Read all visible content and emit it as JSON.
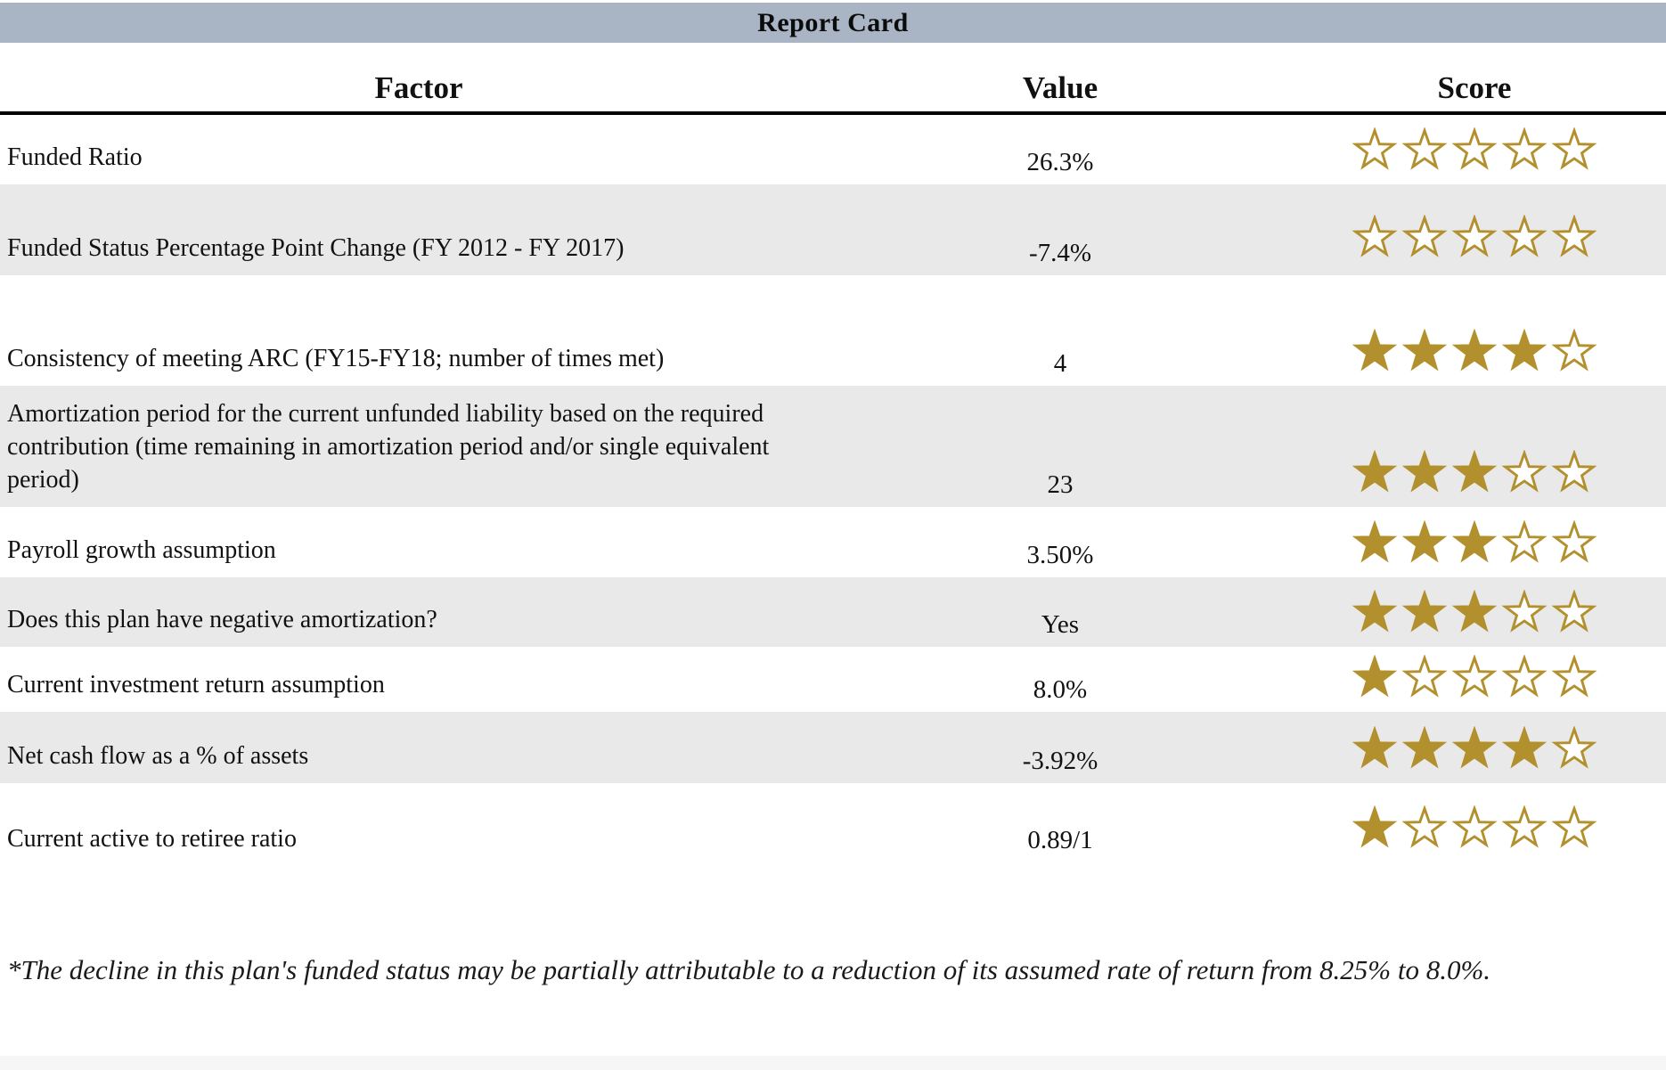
{
  "title": "Report Card",
  "columns": {
    "factor": "Factor",
    "value": "Value",
    "score": "Score"
  },
  "stars": {
    "max": 5
  },
  "rows": [
    {
      "factor": "Funded Ratio",
      "value": "26.3%",
      "score": 0
    },
    {
      "factor": "Funded Status Percentage Point Change (FY 2012 - FY 2017)",
      "value": "-7.4%",
      "score": 0
    },
    {
      "factor": "Consistency of meeting ARC (FY15-FY18; number of times met)",
      "value": "4",
      "score": 4
    },
    {
      "factor": "Amortization period for the current unfunded liability based on the required contribution (time remaining in amortization period and/or single equivalent period)",
      "value": "23",
      "score": 3
    },
    {
      "factor": "Payroll growth assumption",
      "value": "3.50%",
      "score": 3
    },
    {
      "factor": "Does this plan have negative amortization?",
      "value": "Yes",
      "score": 3
    },
    {
      "factor": "Current investment return assumption",
      "value": "8.0%",
      "score": 1
    },
    {
      "factor": "Net cash flow as a % of assets",
      "value": "-3.92%",
      "score": 4
    },
    {
      "factor": "Current active to retiree ratio",
      "value": "0.89/1",
      "score": 1
    }
  ],
  "footnote": "*The decline in this plan's funded status may be partially attributable to a reduction of its assumed rate of return from 8.25% to 8.0%.",
  "colors": {
    "title_bar": "#a9b5c4",
    "row_alt": "#e9e9e9",
    "star_gold": "#b3902e",
    "header_line": "#000000",
    "bottom_strip": "#f6f6f6"
  }
}
